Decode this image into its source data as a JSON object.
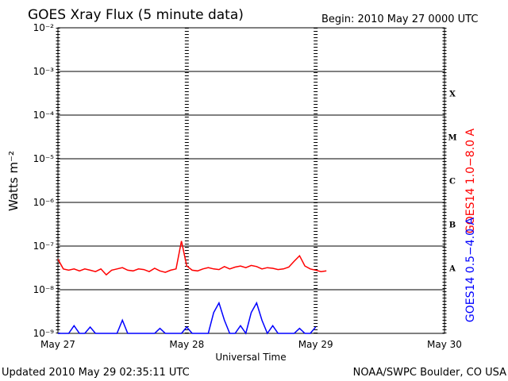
{
  "chart_data": {
    "type": "line",
    "title": "GOES Xray Flux (5 minute data)",
    "subtitle": "Begin:  2010 May 27 0000 UTC",
    "xlabel": "Universal Time",
    "ylabel": "Watts m⁻²",
    "footer_left": "Updated 2010 May 29 02:35:11 UTC",
    "footer_right": "NOAA/SWPC Boulder, CO USA",
    "yscale": "log",
    "grid": true,
    "ylim": [
      1e-09,
      0.01
    ],
    "yticks": [
      {
        "value": 1e-09,
        "label": "10⁻⁹"
      },
      {
        "value": 1e-08,
        "label": "10⁻⁸"
      },
      {
        "value": 1e-07,
        "label": "10⁻⁷"
      },
      {
        "value": 1e-06,
        "label": "10⁻⁶"
      },
      {
        "value": 1e-05,
        "label": "10⁻⁵"
      },
      {
        "value": 0.0001,
        "label": "10⁻⁴"
      },
      {
        "value": 0.001,
        "label": "10⁻³"
      },
      {
        "value": 0.01,
        "label": "10⁻²"
      }
    ],
    "xlim": [
      0,
      72
    ],
    "xticks": [
      {
        "value": 0,
        "label": "May 27"
      },
      {
        "value": 24,
        "label": "May 28"
      },
      {
        "value": 48,
        "label": "May 29"
      },
      {
        "value": 72,
        "label": "May 30"
      }
    ],
    "flare_classes": [
      {
        "label": "A",
        "value": 1e-08
      },
      {
        "label": "B",
        "value": 1e-07
      },
      {
        "label": "C",
        "value": 1e-06
      },
      {
        "label": "M",
        "value": 1e-05
      },
      {
        "label": "X",
        "value": 0.0001
      }
    ],
    "x": [
      0,
      1,
      2,
      3,
      4,
      5,
      6,
      7,
      8,
      9,
      10,
      11,
      12,
      13,
      14,
      15,
      16,
      17,
      18,
      19,
      20,
      21,
      22,
      23,
      24,
      25,
      26,
      27,
      28,
      29,
      30,
      31,
      32,
      33,
      34,
      35,
      36,
      37,
      38,
      39,
      40,
      41,
      42,
      43,
      44,
      45,
      46,
      47,
      48,
      49,
      50
    ],
    "series": [
      {
        "name": "GOES14 1.0−8.0 A",
        "color": "#ff0000",
        "values": [
          5e-08,
          3e-08,
          2.8e-08,
          3e-08,
          2.7e-08,
          3e-08,
          2.8e-08,
          2.6e-08,
          3e-08,
          2.2e-08,
          2.8e-08,
          3e-08,
          3.2e-08,
          2.8e-08,
          2.7e-08,
          3e-08,
          2.9e-08,
          2.6e-08,
          3.1e-08,
          2.7e-08,
          2.5e-08,
          2.8e-08,
          3e-08,
          1.3e-07,
          3.5e-08,
          2.8e-08,
          2.7e-08,
          3e-08,
          3.2e-08,
          3e-08,
          2.9e-08,
          3.4e-08,
          3e-08,
          3.3e-08,
          3.5e-08,
          3.2e-08,
          3.6e-08,
          3.4e-08,
          3e-08,
          3.2e-08,
          3.1e-08,
          2.9e-08,
          3e-08,
          3.3e-08,
          4.5e-08,
          6e-08,
          3.5e-08,
          3e-08,
          2.8e-08,
          2.6e-08,
          2.7e-08
        ]
      },
      {
        "name": "GOES14 0.5−4.0 A",
        "color": "#0000ff",
        "values": [
          1e-09,
          1e-09,
          1e-09,
          1.5e-09,
          1e-09,
          1e-09,
          1.4e-09,
          1e-09,
          1e-09,
          1e-09,
          1e-09,
          1e-09,
          2e-09,
          1e-09,
          1e-09,
          1e-09,
          1e-09,
          1e-09,
          1e-09,
          1.3e-09,
          1e-09,
          1e-09,
          1e-09,
          1e-09,
          1.4e-09,
          1e-09,
          1e-09,
          1e-09,
          1e-09,
          3e-09,
          5e-09,
          2e-09,
          1e-09,
          1e-09,
          1.5e-09,
          1e-09,
          3e-09,
          5e-09,
          2e-09,
          1e-09,
          1.5e-09,
          1e-09,
          1e-09,
          1e-09,
          1e-09,
          1.3e-09,
          1e-09,
          1e-09,
          1.4e-09,
          null,
          null
        ]
      }
    ]
  }
}
